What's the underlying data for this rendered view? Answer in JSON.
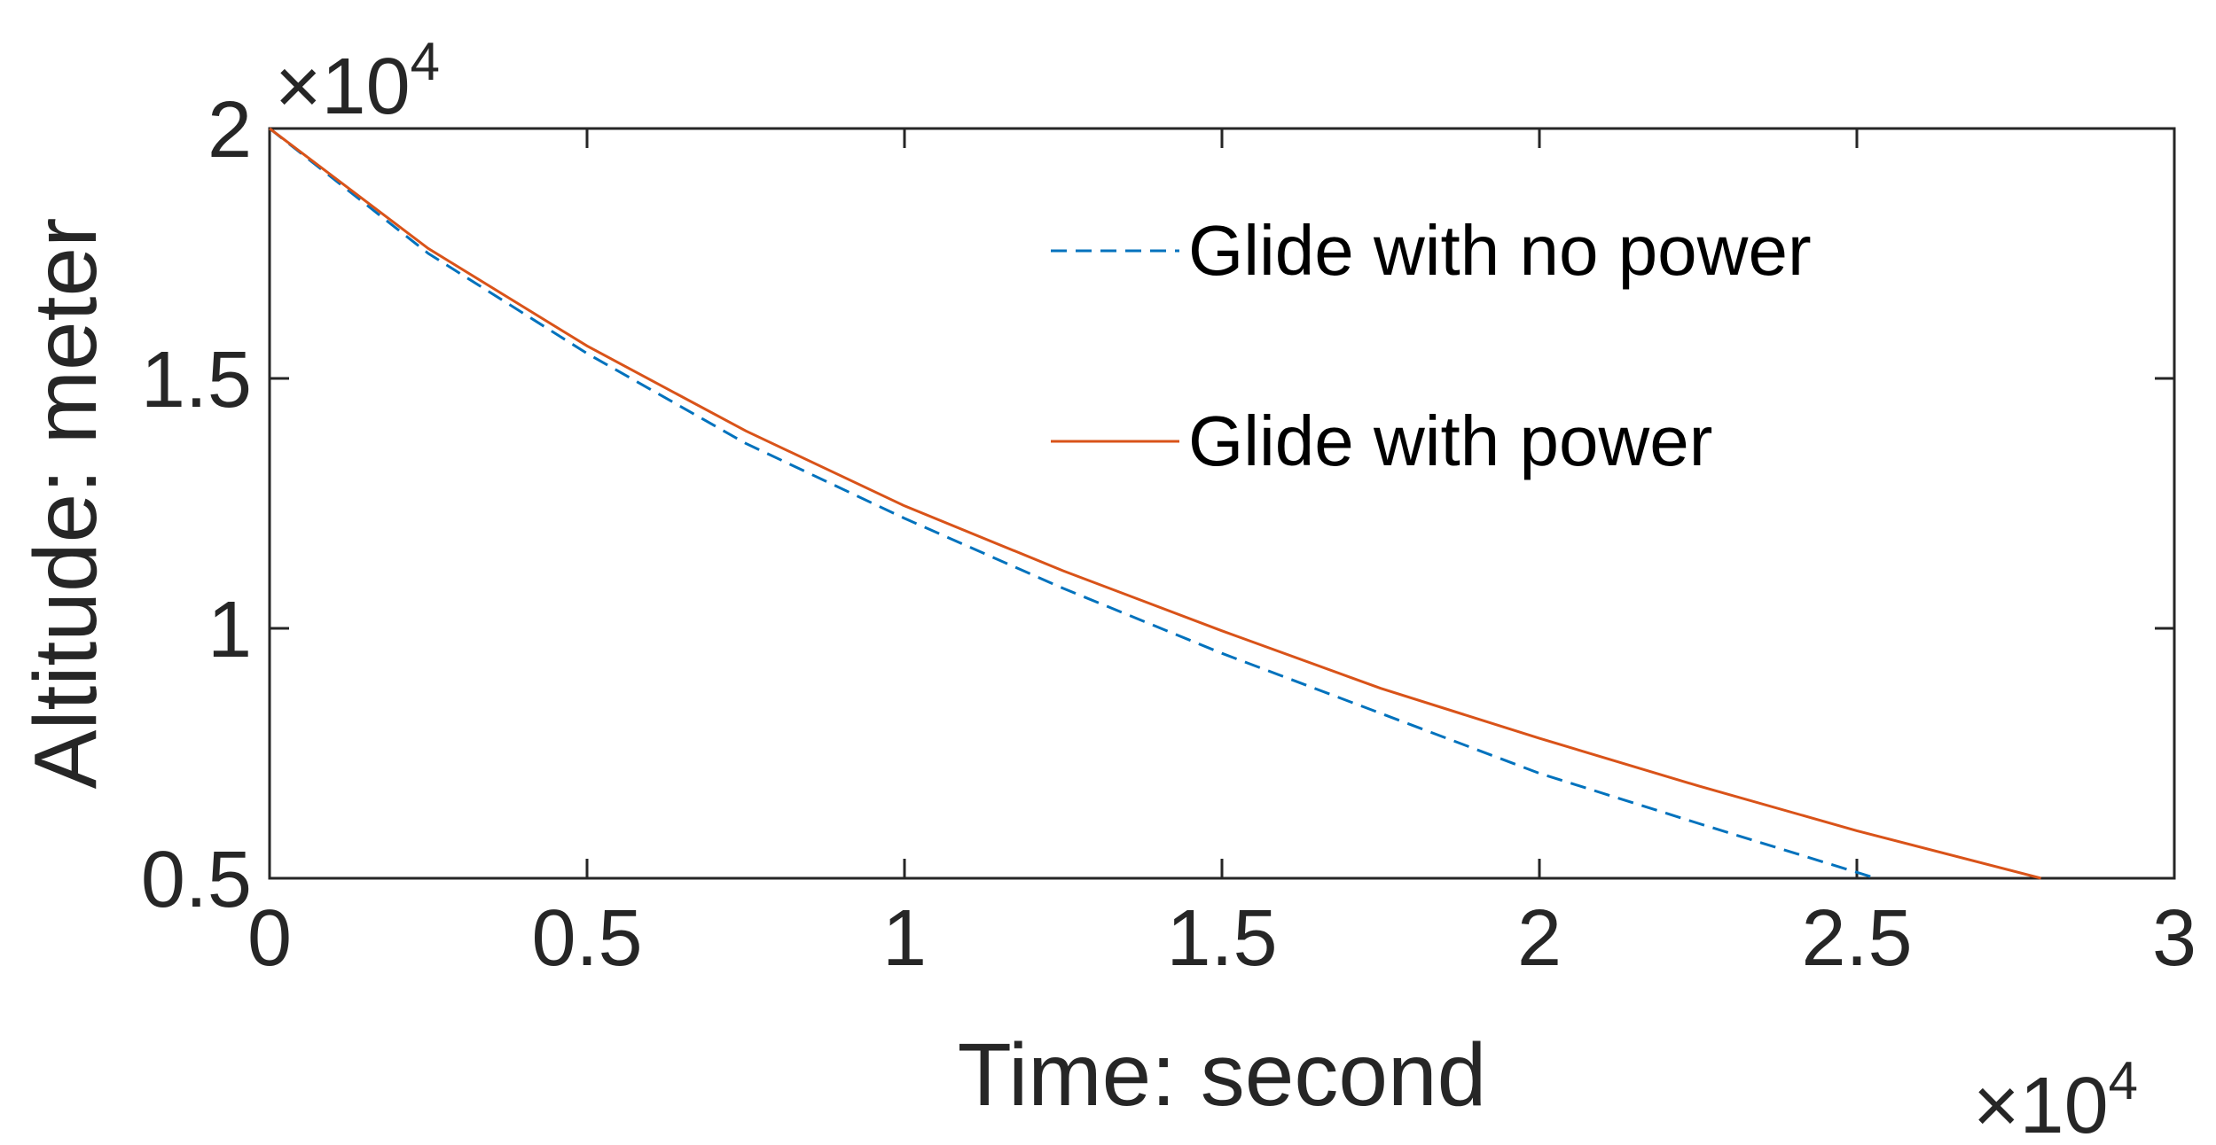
{
  "chart_data": {
    "type": "line",
    "title": "",
    "xlabel": "Time: second",
    "ylabel": "Altitude: meter",
    "xlim": [
      0,
      30000
    ],
    "ylim": [
      5000,
      20000
    ],
    "x_ticks": [
      0,
      5000,
      10000,
      15000,
      20000,
      25000,
      30000
    ],
    "x_tick_labels": [
      "0",
      "0.5",
      "1",
      "1.5",
      "2",
      "2.5",
      "3"
    ],
    "y_ticks": [
      5000,
      10000,
      15000,
      20000
    ],
    "y_tick_labels": [
      "0.5",
      "1",
      "1.5",
      "2"
    ],
    "x_multiplier": {
      "base": "×10",
      "exp": "4"
    },
    "y_multiplier": {
      "base": "×10",
      "exp": "4"
    },
    "grid": false,
    "legend_position": "top-right",
    "series": [
      {
        "name": "Glide with no power",
        "color": "#0072BD",
        "style": "dashed",
        "x": [
          0,
          2500,
          5000,
          7500,
          10000,
          12500,
          15000,
          17500,
          20000,
          22500,
          25300
        ],
        "y": [
          20000,
          17500,
          15500,
          13700,
          12200,
          10800,
          9500,
          8300,
          7100,
          6100,
          5000
        ]
      },
      {
        "name": "Glide with power",
        "color": "#D95319",
        "style": "solid",
        "x": [
          0,
          2500,
          5000,
          7500,
          10000,
          12500,
          15000,
          17500,
          20000,
          22500,
          25000,
          27900
        ],
        "y": [
          20000,
          17600,
          15650,
          13950,
          12450,
          11150,
          9950,
          8800,
          7800,
          6850,
          5950,
          5000
        ]
      }
    ]
  }
}
